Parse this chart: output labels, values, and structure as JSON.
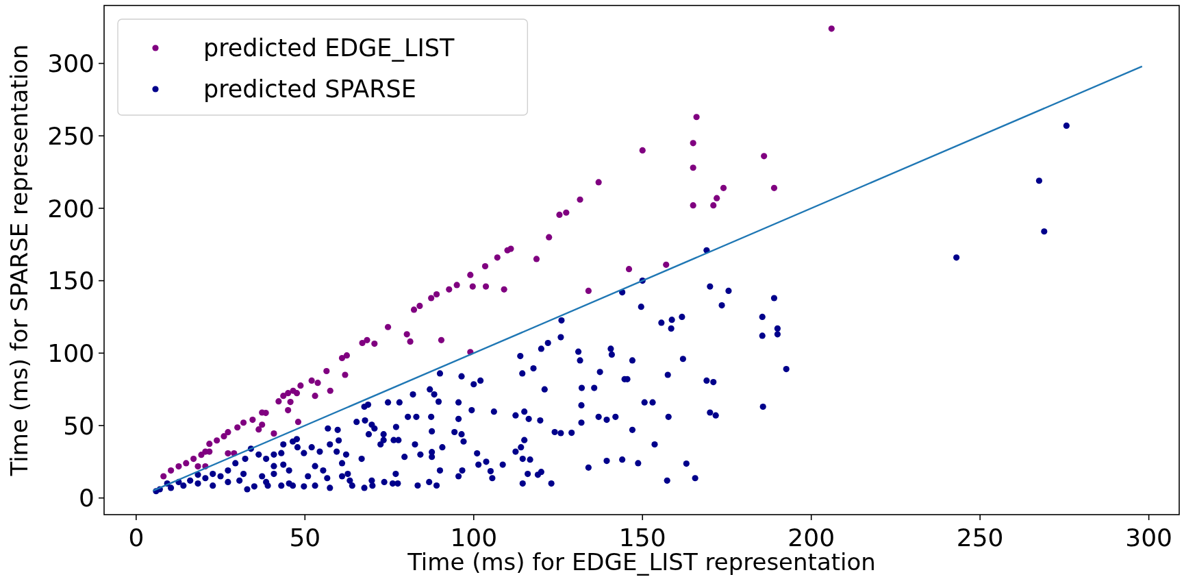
{
  "chart_data": {
    "type": "scatter",
    "xlabel": "Time (ms) for EDGE_LIST representation",
    "ylabel": "Time (ms) for SPARSE representation",
    "xlim": [
      -9.5,
      309
    ],
    "ylim": [
      -11.5,
      340
    ],
    "xticks": [
      0,
      50,
      100,
      150,
      200,
      250,
      300
    ],
    "yticks": [
      0,
      50,
      100,
      150,
      200,
      250,
      300
    ],
    "legend": "top left",
    "marker": "circle",
    "grid": false,
    "series": [
      {
        "name": "predicted EDGE_LIST",
        "color": "#800080",
        "x": [
          131.5,
          125.4,
          127.4,
          122.3,
          118.6,
          110,
          111,
          107,
          103.4,
          99,
          95,
          92.7,
          99.7,
          103.6,
          109,
          134,
          206,
          166,
          165,
          150,
          186,
          165,
          137,
          174,
          189,
          172,
          165,
          171,
          146,
          157,
          89,
          87.4,
          84,
          82.3,
          74.6,
          80.2,
          81.2,
          90.4,
          99,
          68.4,
          67,
          70.6,
          62.4,
          61,
          61.9,
          56.4,
          57.5,
          52,
          53.8,
          53,
          48.7,
          47.6,
          45,
          46.5,
          43.6,
          42.2,
          45.7,
          45,
          48,
          37.3,
          38.4,
          34.5,
          31.8,
          30,
          27.2,
          26,
          23.9,
          21.7,
          19.3,
          17,
          14.8,
          12.6,
          10.3,
          8.1,
          40.8,
          37.3,
          36.3,
          27.2,
          29,
          20.5,
          21.7,
          20.5,
          18.3
        ],
        "values": [
          206,
          195.5,
          197,
          180,
          165,
          171,
          172,
          166,
          160,
          154,
          147,
          144,
          146,
          146,
          144,
          143,
          324,
          263,
          245,
          240,
          236,
          228,
          218,
          214,
          214,
          207,
          202,
          202,
          158,
          161,
          140.6,
          138,
          132.6,
          130,
          118,
          113,
          108,
          109,
          100.7,
          109,
          107,
          106.5,
          98.4,
          96.6,
          85,
          87.6,
          74,
          81,
          79.5,
          70.5,
          77.6,
          72.4,
          72.4,
          74,
          70.5,
          66.7,
          66.3,
          60.6,
          52.5,
          59,
          58.7,
          54,
          52,
          48.7,
          45.4,
          42.6,
          39.7,
          32,
          29.8,
          27,
          24,
          21.8,
          19,
          15,
          44.5,
          50.6,
          47.3,
          30.8,
          30.8,
          21.8,
          37.4,
          32,
          21.8
        ]
      },
      {
        "name": "predicted SPARSE",
        "color": "#00008b",
        "x": [
          169,
          150,
          243,
          267.5,
          269,
          275.6,
          170,
          144,
          149.6,
          175.5,
          173.5,
          189,
          185.5,
          185.5,
          190,
          190,
          192.6,
          185.7,
          155.6,
          158.7,
          158.5,
          161.7,
          140.6,
          140.9,
          147,
          162,
          137.4,
          135.7,
          144.7,
          145.5,
          157.5,
          169,
          171,
          150.6,
          153,
          170,
          171.7,
          137,
          139.4,
          142,
          157.7,
          147,
          153.6,
          134,
          139.4,
          144,
          148.7,
          163,
          157.3,
          165.6,
          126,
          125.8,
          120,
          122,
          113.8,
          131,
          117.7,
          114.4,
          131.5,
          90,
          96.4,
          102,
          100,
          132,
          121,
          82,
          87,
          88.3,
          89.6,
          78,
          74.6,
          95.5,
          99.4,
          106,
          112.4,
          115,
          116.3,
          119.7,
          131.9,
          131.9,
          68.7,
          67.6,
          80.5,
          83,
          87.4,
          95.5,
          77,
          87.6,
          124,
          125.8,
          129,
          94.3,
          97,
          96.4,
          115,
          76.3,
          73.3,
          77.7,
          73.3,
          65.3,
          67.8,
          56.8,
          59.7,
          82.6,
          90.7,
          84.2,
          87.6,
          87.6,
          79.5,
          101,
          101.4,
          103.7,
          108.6,
          105,
          105.5,
          112.4,
          114,
          116.7,
          114.5,
          114.5,
          116,
          119,
          120,
          123,
          90,
          96.6,
          95.5,
          86.8,
          89,
          83.4,
          76.9,
          77.5,
          76,
          73.5,
          70,
          69.8,
          67.6,
          64,
          63.3,
          62.7,
          57.4,
          53,
          49.7,
          46.4,
          43,
          39,
          35,
          32.9,
          70.6,
          68.9,
          69.8,
          72.4,
          66.8,
          62.2,
          61,
          59.4,
          57.4,
          60,
          54.4,
          52,
          49.7,
          47.8,
          46.4,
          47.6,
          43.6,
          43,
          40.8,
          43.6,
          40.8,
          38.5,
          36.3,
          34,
          32.3,
          29.4,
          27.2,
          31.8,
          37.3,
          40.8,
          45.3,
          50.9,
          55.4,
          56.6,
          53,
          61,
          27.2,
          22.7,
          18.3,
          14,
          10.3,
          7,
          5.9,
          20.5,
          16,
          25,
          30.6,
          12.6,
          22.7,
          38.5,
          45.3,
          18.3,
          9.2
        ],
        "values": [
          171,
          150,
          166,
          219,
          184,
          257,
          146,
          142,
          132,
          143,
          133,
          138,
          125,
          112,
          117,
          113,
          89,
          63,
          121,
          123,
          117,
          125,
          103,
          99,
          95,
          96,
          87,
          76,
          82,
          82,
          85,
          81,
          80,
          66,
          66,
          59,
          57,
          56,
          54,
          56,
          56,
          47,
          37,
          21,
          25.6,
          26.5,
          24,
          23.7,
          12,
          13.7,
          122.6,
          111,
          103,
          107,
          98,
          101,
          89.5,
          86,
          95,
          86,
          84,
          81,
          78.5,
          76,
          75,
          71.5,
          75,
          71.5,
          66.5,
          66,
          66,
          66,
          60.6,
          59.6,
          57,
          59.6,
          54.6,
          53.5,
          64,
          52,
          64.4,
          63,
          56,
          56,
          56,
          54.6,
          49,
          46,
          45.5,
          44.8,
          45,
          45.5,
          39,
          44,
          40,
          40,
          40,
          40,
          44,
          52.5,
          53.5,
          48,
          47,
          37,
          35,
          30,
          31.7,
          28.4,
          28.4,
          30.8,
          23,
          25,
          23,
          18.5,
          13.7,
          32,
          35,
          26.5,
          27,
          10,
          16.6,
          16,
          18,
          10,
          19,
          19,
          15,
          11,
          8.6,
          8.6,
          16.6,
          10,
          10,
          11,
          8.5,
          12,
          7,
          8.5,
          12,
          16.6,
          7,
          8.5,
          8,
          8.5,
          8.5,
          8.5,
          8,
          6,
          48,
          44,
          50.6,
          37,
          27,
          30,
          24,
          32,
          37,
          39.7,
          32,
          35,
          31,
          35,
          39,
          40.6,
          37,
          31,
          30,
          23,
          22,
          27,
          30,
          34,
          27,
          24,
          19,
          16.6,
          15,
          16.6,
          19,
          15,
          19,
          13.7,
          22,
          15,
          11,
          8.5,
          10,
          8.5,
          7,
          6,
          4.7,
          13.7,
          12,
          15,
          12,
          11,
          16.6,
          11,
          10,
          16,
          10
        ]
      },
      {
        "color": "#1f77b4",
        "type": "line",
        "marker": "none",
        "x": [
          5,
          298
        ],
        "values": [
          5,
          298
        ]
      }
    ]
  }
}
